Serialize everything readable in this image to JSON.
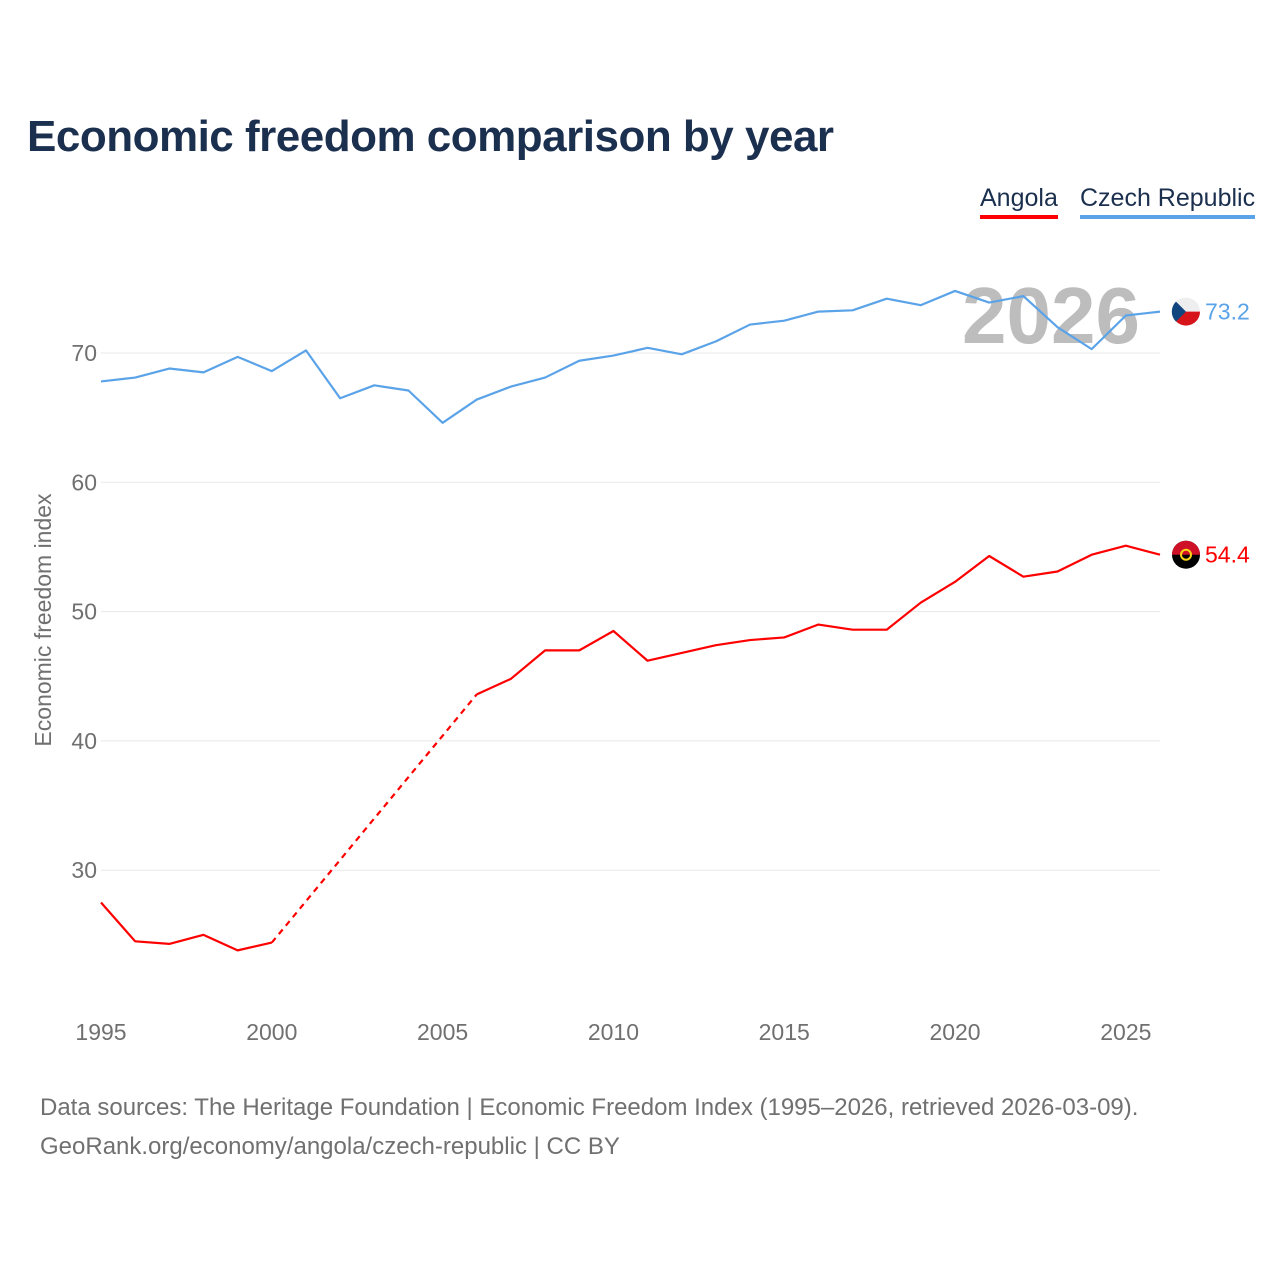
{
  "title": "Economic freedom comparison by year",
  "legend": [
    "Angola",
    "Czech Republic"
  ],
  "footer": {
    "line1": "Data sources: The Heritage Foundation | Economic Freedom Index (1995–2026, retrieved 2026-03-09).",
    "line2": "GeoRank.org/economy/angola/czech-republic | CC BY"
  },
  "chart_data": {
    "type": "line",
    "title": "Economic freedom comparison by year",
    "xlabel": "",
    "ylabel": "Economic freedom index",
    "watermark_year": "2026",
    "xlim": [
      1995,
      2026
    ],
    "ylim": [
      20,
      77
    ],
    "yticks": [
      30,
      40,
      50,
      60,
      70
    ],
    "xticks": [
      1995,
      2000,
      2005,
      2010,
      2015,
      2020,
      2025
    ],
    "grid": true,
    "legend_placement": "top-right",
    "x": [
      1995,
      1996,
      1997,
      1998,
      1999,
      2000,
      2001,
      2002,
      2003,
      2004,
      2005,
      2006,
      2007,
      2008,
      2009,
      2010,
      2011,
      2012,
      2013,
      2014,
      2015,
      2016,
      2017,
      2018,
      2019,
      2020,
      2021,
      2022,
      2023,
      2024,
      2025,
      2026
    ],
    "series": [
      {
        "name": "Angola",
        "color": "#ff0000",
        "end_label": "54.4",
        "values": [
          27.5,
          24.5,
          24.3,
          25.0,
          23.8,
          24.4,
          null,
          null,
          null,
          null,
          null,
          43.6,
          44.8,
          47.0,
          47.0,
          48.5,
          46.2,
          46.8,
          47.4,
          47.8,
          48.0,
          49.0,
          48.6,
          48.6,
          50.7,
          52.3,
          54.3,
          52.7,
          53.1,
          54.4,
          55.1,
          54.4
        ]
      },
      {
        "name": "Czech Republic",
        "color": "#5ba3e8",
        "end_label": "73.2",
        "values": [
          67.8,
          68.1,
          68.8,
          68.5,
          69.7,
          68.6,
          70.2,
          66.5,
          67.5,
          67.1,
          64.6,
          66.4,
          67.4,
          68.1,
          69.4,
          69.8,
          70.4,
          69.9,
          70.9,
          72.2,
          72.5,
          73.2,
          73.3,
          74.2,
          73.7,
          74.8,
          73.9,
          74.4,
          72.0,
          70.3,
          72.9,
          73.2
        ]
      }
    ]
  }
}
